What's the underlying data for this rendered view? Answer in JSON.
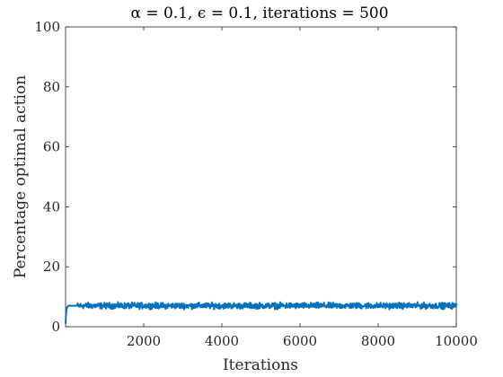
{
  "chart_data": {
    "type": "line",
    "title": "α = 0.1, ϵ = 0.1, iterations = 500",
    "xlabel": "Iterations",
    "ylabel": "Percentage optimal action",
    "xlim": [
      0,
      10000
    ],
    "ylim": [
      0,
      100
    ],
    "xticks": [
      2000,
      4000,
      6000,
      8000,
      10000
    ],
    "xtick_labels": [
      "2000",
      "4000",
      "6000",
      "8000",
      "10000"
    ],
    "yticks": [
      0,
      20,
      40,
      60,
      80,
      100
    ],
    "ytick_labels": [
      "0",
      "20",
      "40",
      "60",
      "80",
      "100"
    ],
    "grid": false,
    "series": [
      {
        "color": "#0072BD",
        "summary": "noisy flat line around 7% after a rapid rise from ~1% at the first iterations",
        "x": [
          1,
          10,
          25,
          50,
          75,
          100,
          150,
          200,
          300,
          500,
          1000,
          1500,
          2000,
          2500,
          3000,
          3500,
          4000,
          4500,
          5000,
          5500,
          6000,
          6500,
          7000,
          7500,
          8000,
          8500,
          9000,
          9500,
          10000
        ],
        "values": [
          1.0,
          4.0,
          6.0,
          6.8,
          7.0,
          7.0,
          7.0,
          7.0,
          7.0,
          7.0,
          7.0,
          7.0,
          7.0,
          7.0,
          7.0,
          7.0,
          7.0,
          7.0,
          7.0,
          7.0,
          7.0,
          7.0,
          7.0,
          7.0,
          7.0,
          7.0,
          7.0,
          7.0,
          7.0
        ],
        "noise_range": [
          5.8,
          8.6
        ]
      }
    ]
  }
}
